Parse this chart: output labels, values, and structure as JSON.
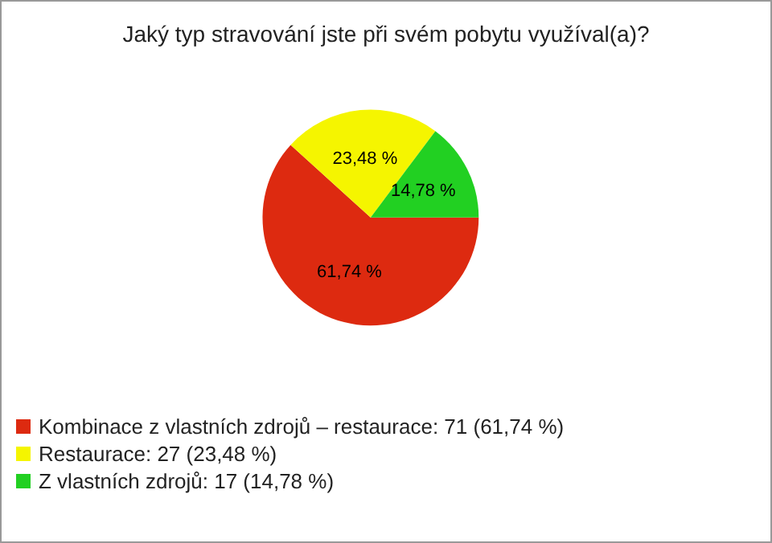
{
  "chart_data": {
    "type": "pie",
    "title": "Jaký typ stravování jste při svém pobytu využíval(a)?",
    "categories": [
      "Kombinace z vlastních zdrojů – restaurace: 71 (61,74 %)",
      "Restaurace: 27 (23,48 %)",
      "Z vlastních zdrojů: 17 (14,78 %)"
    ],
    "values": [
      61.74,
      23.48,
      14.78
    ],
    "colors": [
      "#dd2a10",
      "#f5f500",
      "#22d022"
    ],
    "value_labels": [
      "61,74 %",
      "23,48 %",
      "14,78 %"
    ],
    "legend": "bottom left"
  }
}
